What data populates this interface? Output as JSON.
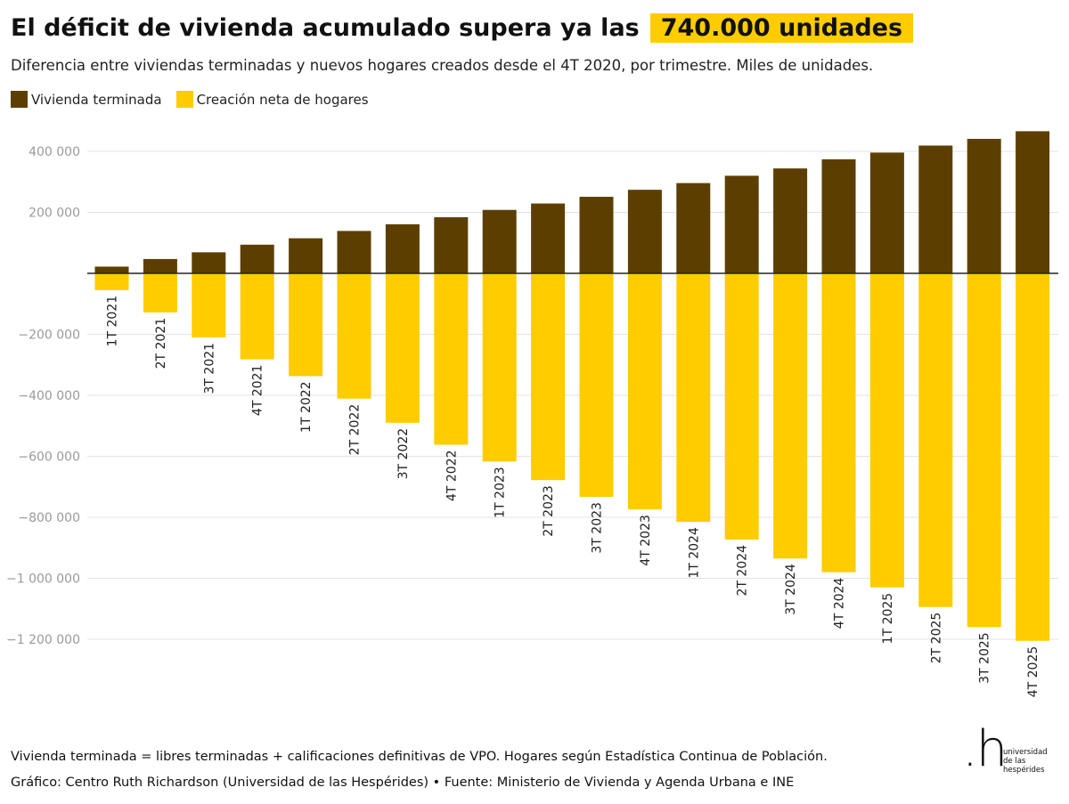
{
  "header": {
    "title": "El déficit de vivienda acumulado supera ya las",
    "title_highlight": "740.000 unidades",
    "subtitle": "Diferencia entre viviendas terminadas y nuevos hogares creados desde el 4T 2020, por trimestre. Miles de unidades."
  },
  "legend": [
    {
      "label": "Vivienda terminada",
      "color": "#5c3f00"
    },
    {
      "label": "Creación neta de hogares",
      "color": "#ffcc00"
    }
  ],
  "chart_data": {
    "type": "bar",
    "legend_placement": "top-left",
    "grid": true,
    "ylim": [
      -1300000,
      480000
    ],
    "yticks": [
      400000,
      200000,
      -200000,
      -400000,
      -600000,
      -800000,
      -1000000,
      -1200000
    ],
    "ytick_labels": [
      "400 000",
      "200 000",
      "−200 000",
      "−400 000",
      "−600 000",
      "−800 000",
      "−1 000 000",
      "−1 200 000"
    ],
    "categories": [
      "1T 2021",
      "2T 2021",
      "3T 2021",
      "4T 2021",
      "1T 2022",
      "2T 2022",
      "3T 2022",
      "4T 2022",
      "1T 2023",
      "2T 2023",
      "3T 2023",
      "4T 2023",
      "1T 2024",
      "2T 2024",
      "3T 2024",
      "4T 2024",
      "1T 2025",
      "2T 2025",
      "3T 2025",
      "4T 2025"
    ],
    "series": [
      {
        "name": "Vivienda terminada",
        "color": "#5c3f00",
        "values": [
          22000,
          47000,
          69000,
          94000,
          115000,
          139000,
          161000,
          184000,
          208000,
          229000,
          251000,
          274000,
          296000,
          320000,
          344000,
          374000,
          396000,
          419000,
          441000,
          466000
        ]
      },
      {
        "name": "Creación neta de hogares",
        "color": "#ffcc00",
        "values": [
          -55000,
          -128000,
          -210000,
          -282000,
          -337000,
          -411000,
          -490000,
          -562000,
          -617000,
          -678000,
          -733000,
          -774000,
          -815000,
          -873000,
          -935000,
          -980000,
          -1030000,
          -1094000,
          -1160000,
          -1205000
        ]
      }
    ]
  },
  "footer": {
    "note": "Vivienda terminada = libres terminadas + calificaciones definitivas de VPO. Hogares según Estadística Continua de Población.",
    "credit": "Gráfico: Centro Ruth Richardson (Universidad de las Hespérides) • Fuente: Ministerio de Vivienda y Agenda Urbana e INE"
  },
  "logo": {
    "mark": ".h",
    "lines": [
      "universidad",
      "de las",
      "hespérides"
    ]
  }
}
